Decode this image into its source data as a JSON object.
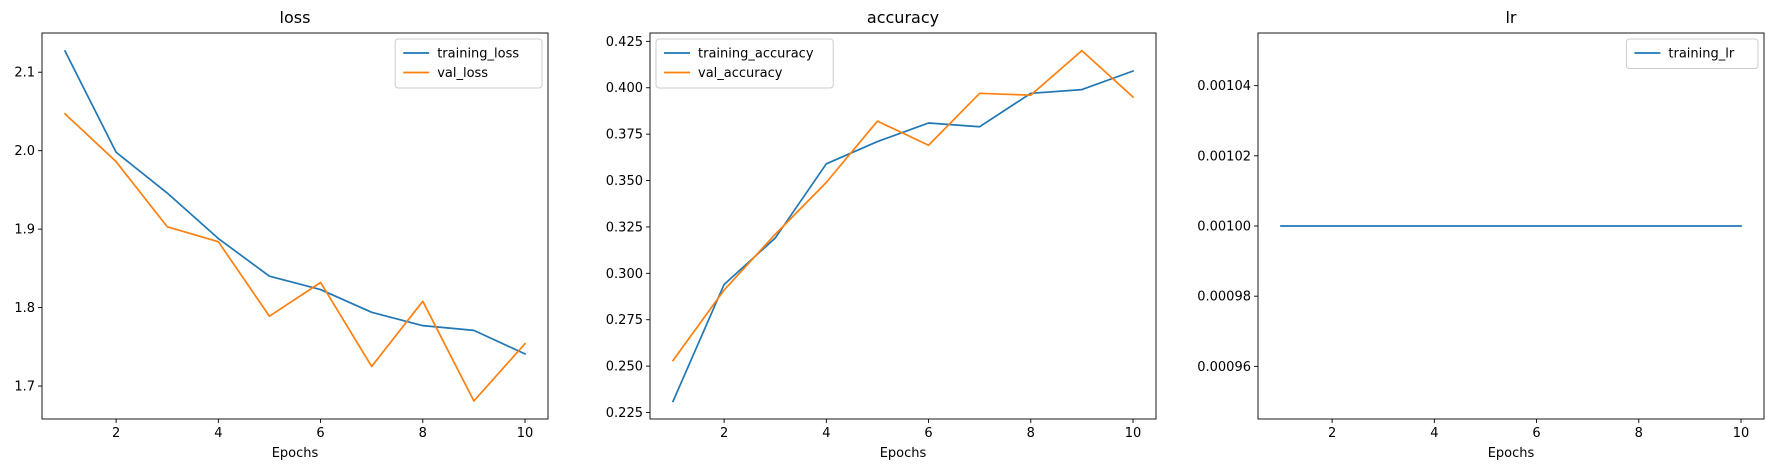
{
  "chart_data": [
    {
      "type": "line",
      "title": "loss",
      "xlabel": "Epochs",
      "ylabel": "",
      "xlim": [
        0.55,
        10.45
      ],
      "ylim": [
        1.658,
        2.15
      ],
      "xticks": [
        2,
        4,
        6,
        8,
        10
      ],
      "xtick_labels": [
        "2",
        "4",
        "6",
        "8",
        "10"
      ],
      "yticks": [
        1.7,
        1.8,
        1.9,
        2.0,
        2.1
      ],
      "ytick_labels": [
        "1.7",
        "1.8",
        "1.9",
        "2.0",
        "2.1"
      ],
      "legend_position": "top-right",
      "x": [
        1,
        2,
        3,
        4,
        5,
        6,
        7,
        8,
        9,
        10
      ],
      "series": [
        {
          "name": "training_loss",
          "color": "#1f77b4",
          "values": [
            2.127,
            1.998,
            1.946,
            1.888,
            1.84,
            1.823,
            1.794,
            1.777,
            1.771,
            1.741
          ]
        },
        {
          "name": "val_loss",
          "color": "#ff7f0e",
          "values": [
            2.047,
            1.986,
            1.903,
            1.884,
            1.789,
            1.832,
            1.725,
            1.808,
            1.681,
            1.754
          ]
        }
      ]
    },
    {
      "type": "line",
      "title": "accuracy",
      "xlabel": "Epochs",
      "ylabel": "",
      "xlim": [
        0.55,
        10.45
      ],
      "ylim": [
        0.2215,
        0.4295
      ],
      "xticks": [
        2,
        4,
        6,
        8,
        10
      ],
      "xtick_labels": [
        "2",
        "4",
        "6",
        "8",
        "10"
      ],
      "yticks": [
        0.225,
        0.25,
        0.275,
        0.3,
        0.325,
        0.35,
        0.375,
        0.4,
        0.425
      ],
      "ytick_labels": [
        "0.225",
        "0.250",
        "0.275",
        "0.300",
        "0.325",
        "0.350",
        "0.375",
        "0.400",
        "0.425"
      ],
      "legend_position": "top-left",
      "x": [
        1,
        2,
        3,
        4,
        5,
        6,
        7,
        8,
        9,
        10
      ],
      "series": [
        {
          "name": "training_accuracy",
          "color": "#1f77b4",
          "values": [
            0.231,
            0.294,
            0.319,
            0.359,
            0.371,
            0.381,
            0.379,
            0.397,
            0.399,
            0.409
          ]
        },
        {
          "name": "val_accuracy",
          "color": "#ff7f0e",
          "values": [
            0.253,
            0.291,
            0.321,
            0.349,
            0.382,
            0.369,
            0.397,
            0.396,
            0.42,
            0.395
          ]
        }
      ]
    },
    {
      "type": "line",
      "title": "lr",
      "xlabel": "Epochs",
      "ylabel": "",
      "xlim": [
        0.55,
        10.45
      ],
      "ylim": [
        0.000945,
        0.001055
      ],
      "xticks": [
        2,
        4,
        6,
        8,
        10
      ],
      "xtick_labels": [
        "2",
        "4",
        "6",
        "8",
        "10"
      ],
      "yticks": [
        0.00096,
        0.00098,
        0.001,
        0.00102,
        0.00104
      ],
      "ytick_labels": [
        "0.00096",
        "0.00098",
        "0.00100",
        "0.00102",
        "0.00104"
      ],
      "legend_position": "top-right",
      "x": [
        1,
        2,
        3,
        4,
        5,
        6,
        7,
        8,
        9,
        10
      ],
      "series": [
        {
          "name": "training_lr",
          "color": "#1f77b4",
          "values": [
            0.001,
            0.001,
            0.001,
            0.001,
            0.001,
            0.001,
            0.001,
            0.001,
            0.001,
            0.001
          ]
        }
      ]
    }
  ]
}
